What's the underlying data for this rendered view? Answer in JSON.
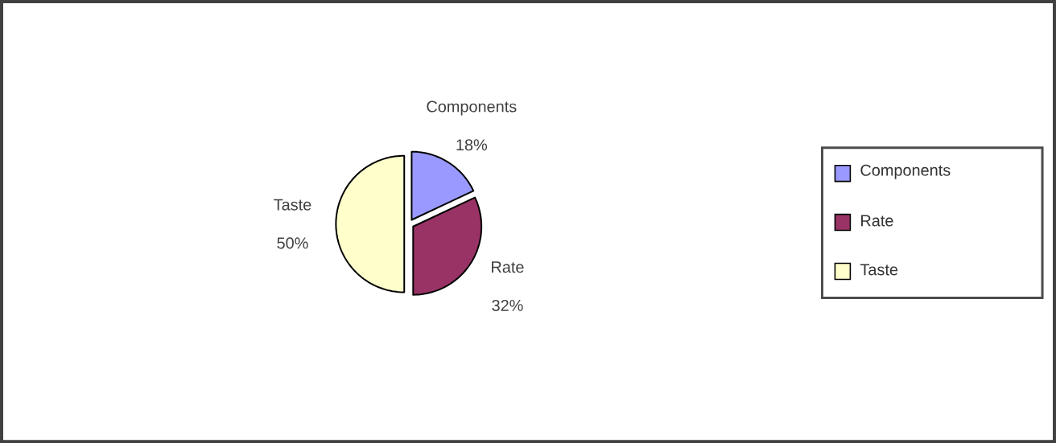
{
  "chart_data": {
    "type": "pie",
    "categories": [
      "Components",
      "Rate",
      "Taste"
    ],
    "values": [
      18,
      32,
      50
    ],
    "colors": [
      "#9999ff",
      "#993366",
      "#ffffcc"
    ],
    "value_labels": [
      "18%",
      "32%",
      "50%"
    ],
    "legend": "right"
  }
}
